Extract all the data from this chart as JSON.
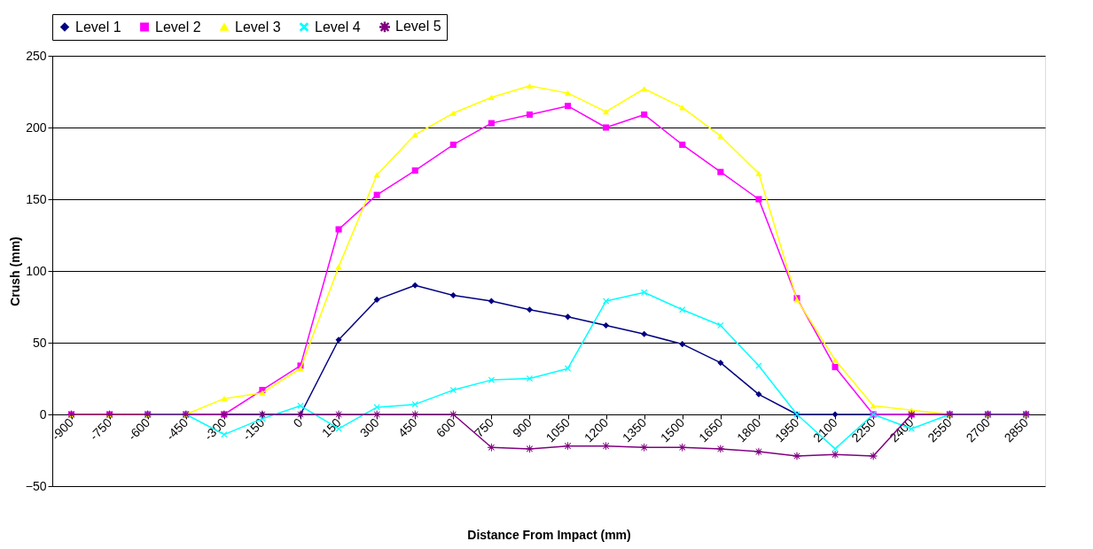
{
  "chart_data": {
    "type": "line",
    "xlabel": "Distance From Impact (mm)",
    "ylabel": "Crush (mm)",
    "categories": [
      "-900",
      "-750",
      "-600",
      "-450",
      "-300",
      "-150",
      "0",
      "150",
      "300",
      "450",
      "600",
      "750",
      "900",
      "1050",
      "1200",
      "1350",
      "1500",
      "1650",
      "1800",
      "1950",
      "2100",
      "2250",
      "2400",
      "2550",
      "2700",
      "2850"
    ],
    "series": [
      {
        "name": "Level 1",
        "color": "#000080",
        "marker": "diamond",
        "values": [
          null,
          null,
          null,
          null,
          0,
          0,
          0,
          52,
          80,
          90,
          83,
          79,
          73,
          68,
          62,
          56,
          49,
          36,
          14,
          0,
          0,
          0,
          0,
          null,
          null,
          null
        ]
      },
      {
        "name": "Level 2",
        "color": "#ff00ff",
        "marker": "square",
        "values": [
          0,
          0,
          0,
          0,
          0,
          17,
          34,
          129,
          153,
          170,
          188,
          203,
          209,
          215,
          200,
          209,
          188,
          169,
          150,
          81,
          33,
          0,
          0,
          0,
          0,
          0
        ]
      },
      {
        "name": "Level 3",
        "color": "#ffff00",
        "marker": "triangle",
        "values": [
          0,
          0,
          0,
          0,
          11,
          15,
          32,
          103,
          167,
          195,
          210,
          221,
          229,
          224,
          211,
          227,
          214,
          194,
          168,
          80,
          38,
          6,
          3,
          0,
          0,
          0
        ]
      },
      {
        "name": "Level 4",
        "color": "#00ffff",
        "marker": "cross",
        "values": [
          null,
          null,
          0,
          0,
          -14,
          -3,
          6,
          -10,
          5,
          7,
          17,
          24,
          25,
          32,
          79,
          85,
          73,
          62,
          34,
          0,
          -24,
          0,
          -10,
          0,
          0,
          0
        ]
      },
      {
        "name": "Level 5",
        "color": "#800080",
        "marker": "star",
        "values": [
          0,
          0,
          0,
          0,
          0,
          0,
          0,
          0,
          0,
          0,
          0,
          -23,
          -24,
          -22,
          -22,
          -23,
          -23,
          -24,
          -26,
          -29,
          -28,
          -29,
          0,
          0,
          0,
          0
        ]
      }
    ],
    "ylim": [
      -50,
      250
    ],
    "yticks": [
      -50,
      0,
      50,
      100,
      150,
      200,
      250
    ],
    "grid": "y",
    "legend": "top",
    "line_style": "solid"
  }
}
